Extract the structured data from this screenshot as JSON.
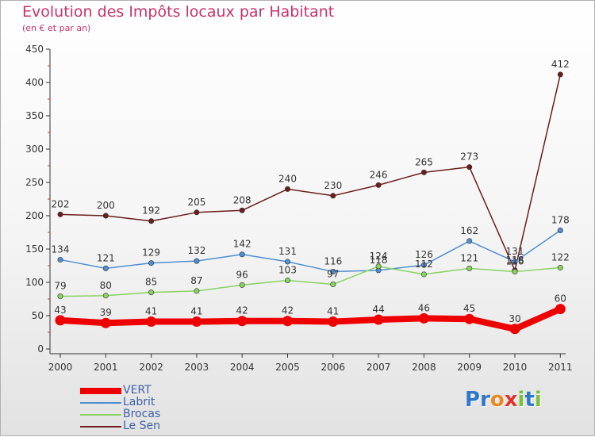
{
  "chart_data": {
    "type": "line",
    "title": "Evolution des Impôts locaux par Habitant",
    "subtitle": "(en € et par an)",
    "x": [
      "2000",
      "2001",
      "2002",
      "2003",
      "2004",
      "2005",
      "2006",
      "2007",
      "2008",
      "2009",
      "2010",
      "2011"
    ],
    "ylim": [
      0,
      450
    ],
    "yticks": [
      0,
      50,
      100,
      150,
      200,
      250,
      300,
      350,
      400,
      450
    ],
    "grid": false,
    "legend_position": "bottom-left",
    "series": [
      {
        "name": "VERT",
        "color": "#ee0000",
        "values": [
          43,
          39,
          41,
          41,
          42,
          42,
          41,
          44,
          46,
          45,
          30,
          60
        ]
      },
      {
        "name": "Labrit",
        "color": "#4f8fd1",
        "values": [
          134,
          121,
          129,
          132,
          142,
          131,
          116,
          118,
          126,
          162,
          131,
          178
        ]
      },
      {
        "name": "Brocas",
        "color": "#88d260",
        "values": [
          79,
          80,
          85,
          87,
          96,
          103,
          97,
          124,
          112,
          121,
          116,
          122
        ]
      },
      {
        "name": "Le Sen",
        "color": "#6b1d1d",
        "values": [
          202,
          200,
          192,
          205,
          208,
          240,
          230,
          246,
          265,
          273,
          118,
          412
        ]
      }
    ]
  },
  "logo": {
    "letters": [
      {
        "ch": "P",
        "color": "#2f79c9"
      },
      {
        "ch": "r",
        "color": "#2f79c9"
      },
      {
        "ch": "o",
        "color": "#e88a24"
      },
      {
        "ch": "x",
        "color": "#e0332b"
      },
      {
        "ch": "i",
        "color": "#7cbf3a"
      },
      {
        "ch": "t",
        "color": "#2f79c9"
      },
      {
        "ch": "i",
        "color": "#7cbf3a"
      }
    ]
  }
}
